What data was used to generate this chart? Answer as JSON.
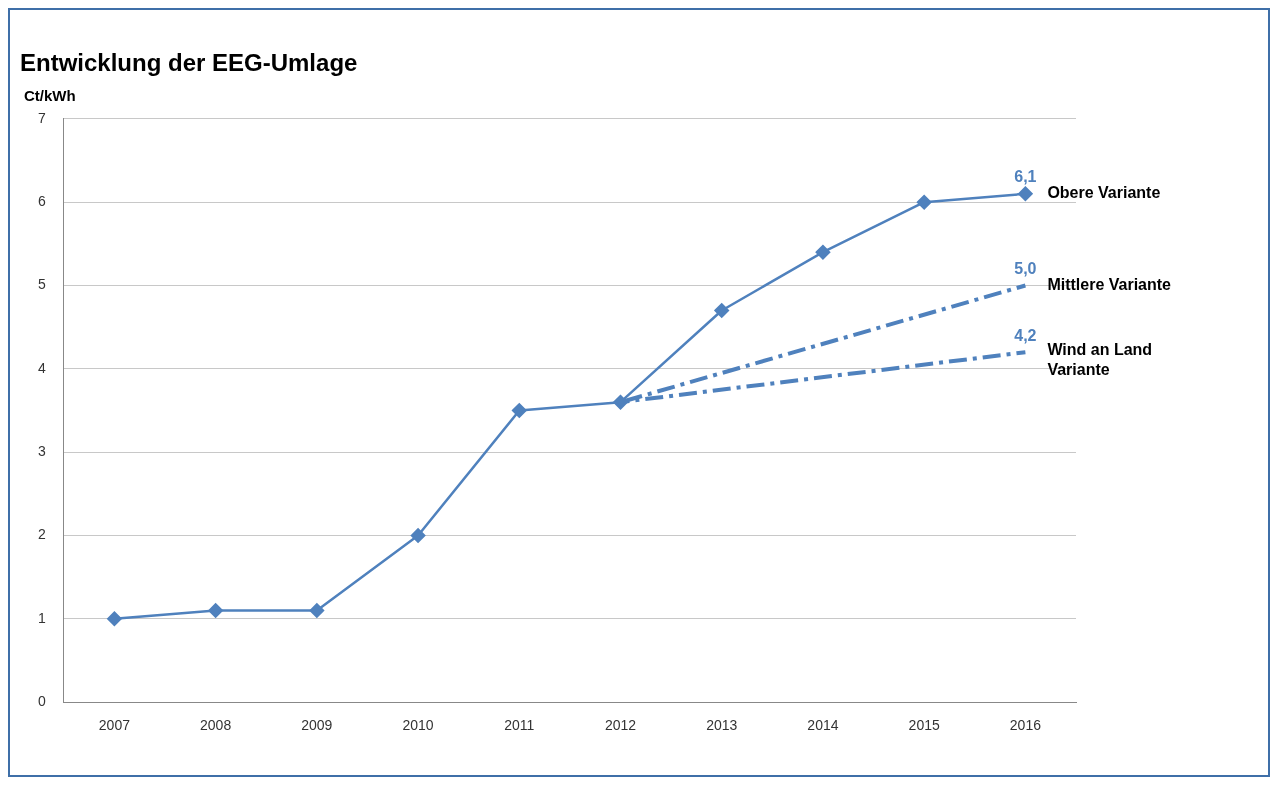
{
  "chart_data": {
    "type": "line",
    "title": "Entwicklung der EEG-Umlage",
    "ylabel": "Ct/kWh",
    "categories": [
      "2007",
      "2008",
      "2009",
      "2010",
      "2011",
      "2012",
      "2013",
      "2014",
      "2015",
      "2016"
    ],
    "series": [
      {
        "name": "Obere Variante",
        "color": "#4f81bd",
        "values": [
          1.0,
          1.1,
          1.1,
          2.0,
          3.5,
          3.6,
          4.7,
          5.4,
          6.0,
          6.1
        ],
        "marker": "diamond",
        "line_style": "solid",
        "value_labels": [
          null,
          null,
          null,
          null,
          null,
          null,
          null,
          null,
          null,
          "6,1"
        ]
      },
      {
        "name": "Mittlere Variante",
        "color": "#4f81bd",
        "values": [
          null,
          null,
          null,
          null,
          null,
          3.6,
          null,
          null,
          null,
          5.0
        ],
        "line_style": "dashed",
        "value_labels": [
          null,
          null,
          null,
          null,
          null,
          null,
          null,
          null,
          null,
          "5,0"
        ]
      },
      {
        "name": "Wind an Land Variante",
        "color": "#4f81bd",
        "values": [
          null,
          null,
          null,
          null,
          null,
          3.6,
          null,
          null,
          null,
          4.2
        ],
        "line_style": "dashed",
        "value_labels": [
          null,
          null,
          null,
          null,
          null,
          null,
          null,
          null,
          null,
          "4,2"
        ]
      }
    ],
    "ylim": [
      0,
      7
    ],
    "yticks": [
      0,
      1,
      2,
      3,
      4,
      5,
      6,
      7
    ],
    "grid": "y",
    "legend": false
  }
}
